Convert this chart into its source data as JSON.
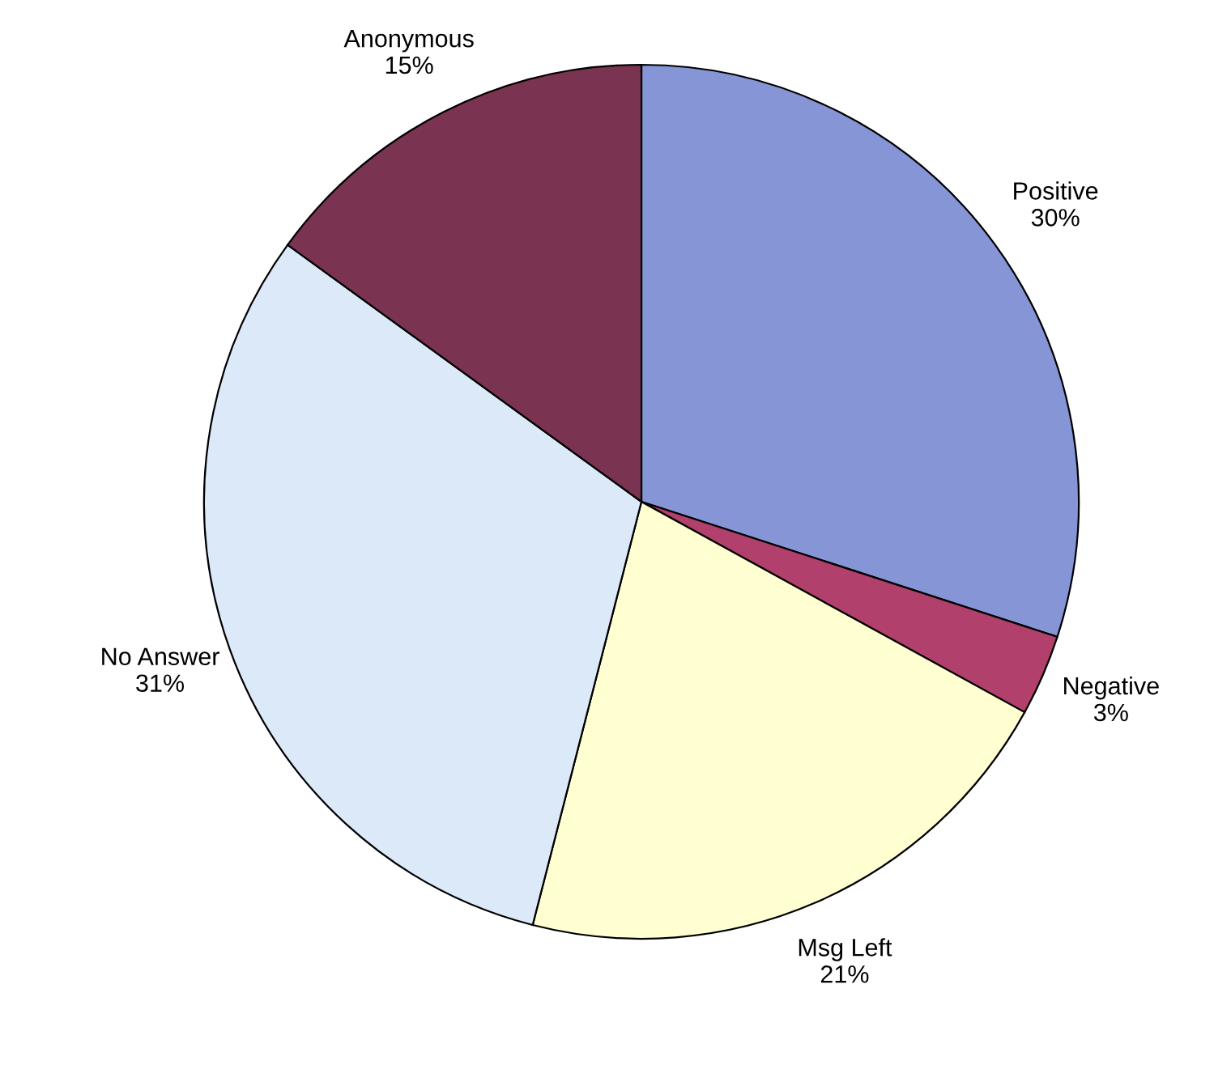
{
  "chart_data": {
    "type": "pie",
    "categories": [
      "Positive",
      "Negative",
      "Msg Left",
      "No Answer",
      "Anonymous"
    ],
    "values": [
      30,
      3,
      21,
      31,
      15
    ],
    "colors": [
      "#8595d6",
      "#b2406c",
      "#ffffd2",
      "#dce9f8",
      "#7b3352"
    ],
    "value_labels": [
      "30%",
      "3%",
      "21%",
      "31%",
      "15%"
    ]
  }
}
